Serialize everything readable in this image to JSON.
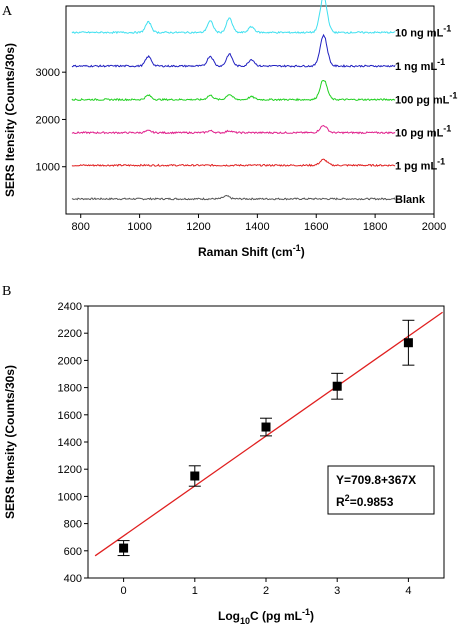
{
  "chart_data": [
    {
      "panel": "A",
      "type": "line",
      "xlabel_main": "Raman Shift (cm",
      "xlabel_sup": "-1",
      "xlabel_close": ")",
      "ylabel": "SERS Itensity (Counts/30s)",
      "xlim": [
        750,
        2000
      ],
      "ylim": [
        0,
        4400
      ],
      "xticks": [
        800,
        1000,
        1200,
        1400,
        1600,
        1800,
        2000
      ],
      "yticks": [
        1000,
        2000,
        3000
      ],
      "series": [
        {
          "name": "Blank",
          "label_main": "Blank",
          "label_sup": "",
          "color": "#555555",
          "baseline": 320,
          "peaks": [
            [
              1295,
              60
            ]
          ]
        },
        {
          "name": "1 pg mL-1",
          "label_main": "1 pg mL",
          "label_sup": "-1",
          "color": "#e02020",
          "baseline": 1030,
          "peaks": [
            [
              1625,
              120
            ]
          ]
        },
        {
          "name": "10 pg mL-1",
          "label_main": "10 pg mL",
          "label_sup": "-1",
          "color": "#e0208c",
          "baseline": 1720,
          "peaks": [
            [
              1030,
              40
            ],
            [
              1240,
              40
            ],
            [
              1305,
              40
            ],
            [
              1625,
              150
            ]
          ]
        },
        {
          "name": "100 pg mL-1",
          "label_main": "100 pg mL",
          "label_sup": "-1",
          "color": "#20d020",
          "baseline": 2420,
          "peaks": [
            [
              1030,
              90
            ],
            [
              1240,
              90
            ],
            [
              1305,
              110
            ],
            [
              1380,
              60
            ],
            [
              1625,
              420
            ]
          ]
        },
        {
          "name": "1 ng mL-1",
          "label_main": "1 ng mL",
          "label_sup": "-1",
          "color": "#2020c0",
          "baseline": 3130,
          "peaks": [
            [
              1030,
              200
            ],
            [
              1240,
              210
            ],
            [
              1305,
              250
            ],
            [
              1380,
              140
            ],
            [
              1625,
              650
            ]
          ]
        },
        {
          "name": "10 ng mL-1",
          "label_main": "10 ng mL",
          "label_sup": "-1",
          "color": "#40e0f0",
          "baseline": 3840,
          "peaks": [
            [
              1030,
              220
            ],
            [
              1240,
              240
            ],
            [
              1305,
              300
            ],
            [
              1380,
              120
            ],
            [
              1625,
              750
            ]
          ]
        }
      ]
    },
    {
      "panel": "B",
      "type": "scatter",
      "xlabel_main": "Log",
      "xlabel_sub": "10",
      "xlabel_rest": "C (pg mL",
      "xlabel_sup": "-1",
      "xlabel_close": ")",
      "ylabel": "SERS Itensity (Counts/30s)",
      "xlim": [
        -0.5,
        4.5
      ],
      "ylim": [
        400,
        2400
      ],
      "xticks": [
        0,
        1,
        2,
        3,
        4
      ],
      "yticks": [
        400,
        600,
        800,
        1000,
        1200,
        1400,
        1600,
        1800,
        2000,
        2200,
        2400
      ],
      "points": [
        {
          "x": 0,
          "y": 620,
          "err": 55
        },
        {
          "x": 1,
          "y": 1150,
          "err": 75
        },
        {
          "x": 2,
          "y": 1510,
          "err": 65
        },
        {
          "x": 3,
          "y": 1810,
          "err": 95
        },
        {
          "x": 4,
          "y": 2130,
          "err": 165
        }
      ],
      "fit": {
        "intercept": 709.8,
        "slope": 367,
        "color": "#e02020"
      },
      "equation": "Y=709.8+367X",
      "r2_main": "R",
      "r2_sup": "2",
      "r2_value": "=0.9853"
    }
  ]
}
